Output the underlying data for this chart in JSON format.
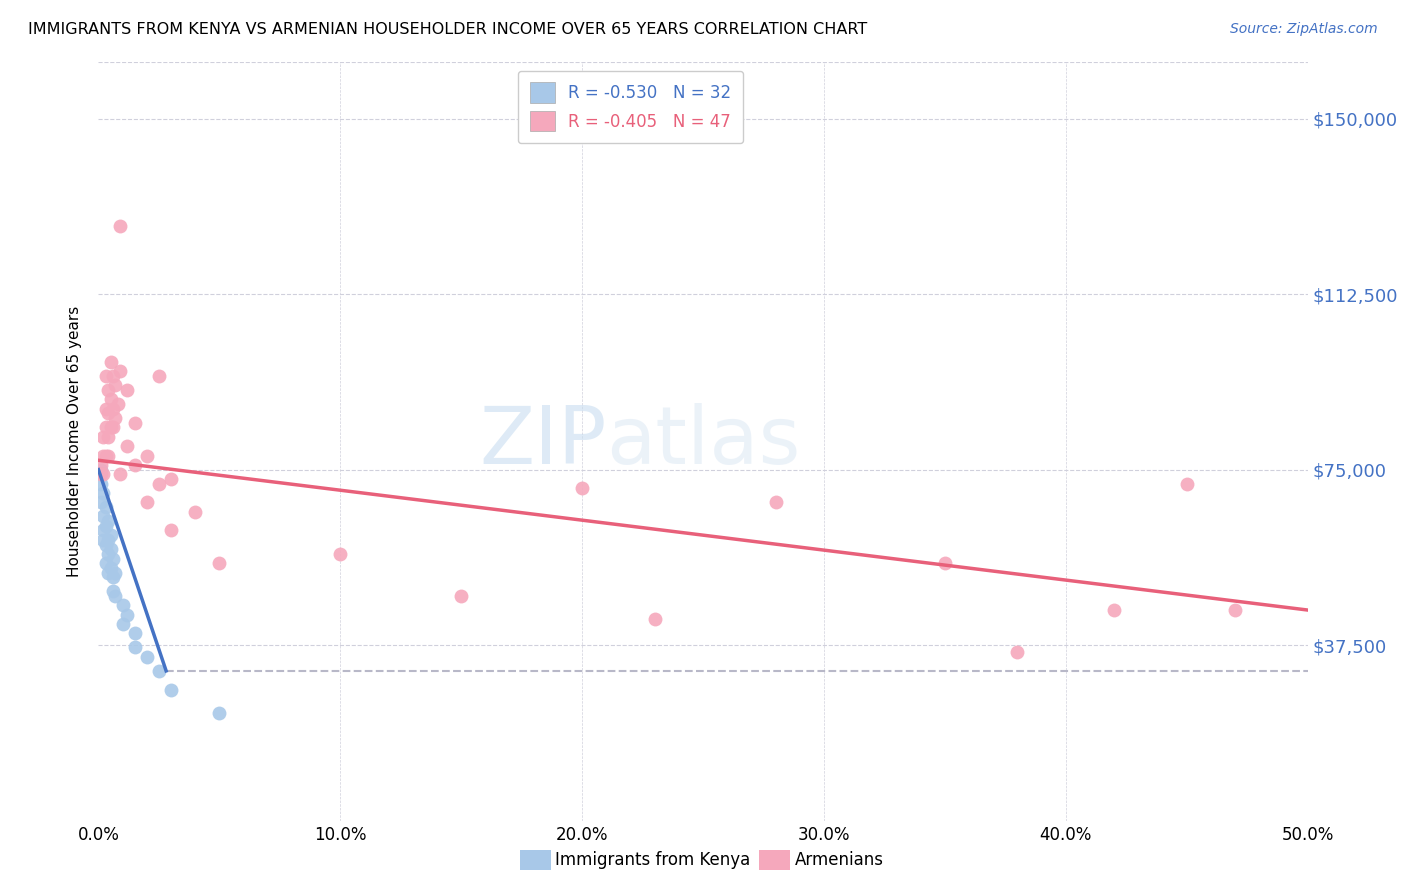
{
  "title": "IMMIGRANTS FROM KENYA VS ARMENIAN HOUSEHOLDER INCOME OVER 65 YEARS CORRELATION CHART",
  "source": "Source: ZipAtlas.com",
  "ylabel": "Householder Income Over 65 years",
  "xlim": [
    0.0,
    0.5
  ],
  "ylim": [
    0,
    162000
  ],
  "yticks": [
    0,
    37500,
    75000,
    112500,
    150000
  ],
  "ytick_labels": [
    "",
    "$37,500",
    "$75,000",
    "$112,500",
    "$150,000"
  ],
  "xticks": [
    0.0,
    0.1,
    0.2,
    0.3,
    0.4,
    0.5
  ],
  "xtick_labels": [
    "0.0%",
    "10.0%",
    "20.0%",
    "30.0%",
    "40.0%",
    "50.0%"
  ],
  "legend_line1": "R = -0.530   N = 32",
  "legend_line2": "R = -0.405   N = 47",
  "kenya_color": "#a8c8e8",
  "armenian_color": "#f5a8bc",
  "kenya_line_color": "#4472c4",
  "armenian_line_color": "#e8607a",
  "dashed_line_color": "#b8b8c8",
  "kenya_scatter": [
    [
      0.001,
      75000
    ],
    [
      0.001,
      72000
    ],
    [
      0.001,
      68000
    ],
    [
      0.002,
      70000
    ],
    [
      0.002,
      65000
    ],
    [
      0.002,
      62000
    ],
    [
      0.002,
      60000
    ],
    [
      0.003,
      67000
    ],
    [
      0.003,
      63000
    ],
    [
      0.003,
      59000
    ],
    [
      0.003,
      55000
    ],
    [
      0.004,
      64000
    ],
    [
      0.004,
      60000
    ],
    [
      0.004,
      57000
    ],
    [
      0.004,
      53000
    ],
    [
      0.005,
      61000
    ],
    [
      0.005,
      58000
    ],
    [
      0.005,
      54000
    ],
    [
      0.006,
      56000
    ],
    [
      0.006,
      52000
    ],
    [
      0.006,
      49000
    ],
    [
      0.007,
      53000
    ],
    [
      0.007,
      48000
    ],
    [
      0.01,
      46000
    ],
    [
      0.01,
      42000
    ],
    [
      0.012,
      44000
    ],
    [
      0.015,
      40000
    ],
    [
      0.015,
      37000
    ],
    [
      0.02,
      35000
    ],
    [
      0.025,
      32000
    ],
    [
      0.03,
      28000
    ],
    [
      0.05,
      23000
    ]
  ],
  "armenian_scatter": [
    [
      0.001,
      76000
    ],
    [
      0.001,
      74000
    ],
    [
      0.002,
      82000
    ],
    [
      0.002,
      78000
    ],
    [
      0.002,
      74000
    ],
    [
      0.003,
      95000
    ],
    [
      0.003,
      88000
    ],
    [
      0.003,
      84000
    ],
    [
      0.003,
      78000
    ],
    [
      0.004,
      92000
    ],
    [
      0.004,
      87000
    ],
    [
      0.004,
      82000
    ],
    [
      0.004,
      78000
    ],
    [
      0.005,
      98000
    ],
    [
      0.005,
      90000
    ],
    [
      0.005,
      84000
    ],
    [
      0.006,
      95000
    ],
    [
      0.006,
      88000
    ],
    [
      0.006,
      84000
    ],
    [
      0.007,
      93000
    ],
    [
      0.007,
      86000
    ],
    [
      0.008,
      89000
    ],
    [
      0.009,
      127000
    ],
    [
      0.009,
      96000
    ],
    [
      0.009,
      74000
    ],
    [
      0.012,
      92000
    ],
    [
      0.012,
      80000
    ],
    [
      0.015,
      85000
    ],
    [
      0.015,
      76000
    ],
    [
      0.02,
      78000
    ],
    [
      0.02,
      68000
    ],
    [
      0.025,
      95000
    ],
    [
      0.025,
      72000
    ],
    [
      0.03,
      73000
    ],
    [
      0.03,
      62000
    ],
    [
      0.04,
      66000
    ],
    [
      0.05,
      55000
    ],
    [
      0.1,
      57000
    ],
    [
      0.15,
      48000
    ],
    [
      0.2,
      71000
    ],
    [
      0.23,
      43000
    ],
    [
      0.28,
      68000
    ],
    [
      0.35,
      55000
    ],
    [
      0.38,
      36000
    ],
    [
      0.42,
      45000
    ],
    [
      0.45,
      72000
    ],
    [
      0.47,
      45000
    ]
  ],
  "background_color": "#ffffff",
  "grid_color": "#d0d0dc"
}
